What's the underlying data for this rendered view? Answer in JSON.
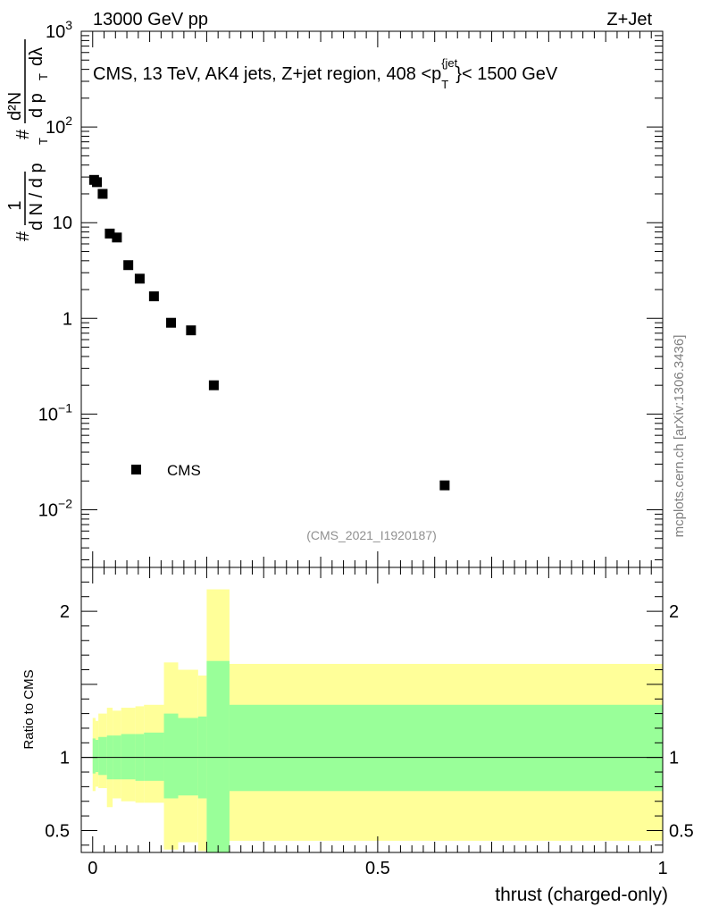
{
  "header": {
    "energy_label": "13000 GeV pp",
    "process_label": "Z+Jet"
  },
  "chart_data": [
    {
      "type": "scatter",
      "panel": "main",
      "title": "CMS, 13 TeV, AK4 jets, Z+jet region, 408 <p_T^{jet}< 1500 GeV",
      "title_parts": {
        "prefix": "CMS, 13 TeV, AK4 jets, Z+jet region, 408 <p",
        "sub": "T",
        "sup": "{jet",
        "suffix": "}< 1500 GeV"
      },
      "ylabel": "1/(dN/dp_T) dN^2/(dp_T dλ)",
      "ylabel_parts": {
        "hash": "#",
        "one": "1",
        "dN": "d N / d p",
        "T": "T",
        "d2N": "d²N",
        "dpT": "d p",
        "dlambda": "dλ"
      },
      "yscale": "log",
      "ylim": [
        0.0025,
        1000
      ],
      "xlim": [
        -0.02,
        1.0
      ],
      "yticks": [
        {
          "value": 1000,
          "base": "10",
          "exp": "3"
        },
        {
          "value": 100,
          "base": "10",
          "exp": "2"
        },
        {
          "value": 10,
          "base": "10",
          "exp": ""
        },
        {
          "value": 1,
          "base": "1",
          "exp": ""
        },
        {
          "value": 0.1,
          "base": "10",
          "exp": "−1"
        },
        {
          "value": 0.01,
          "base": "10",
          "exp": "−2"
        }
      ],
      "series": [
        {
          "name": "CMS",
          "marker": "square",
          "color": "#000000",
          "x": [
            0.0025,
            0.0075,
            0.0175,
            0.03,
            0.0425,
            0.0625,
            0.0825,
            0.1075,
            0.1375,
            0.1725,
            0.2125,
            0.6175
          ],
          "y": [
            28,
            26.5,
            20,
            7.7,
            7.0,
            3.6,
            2.6,
            1.7,
            0.9,
            0.75,
            0.2,
            0.018
          ]
        }
      ],
      "legend": {
        "label": "CMS",
        "placement": "bottom-left"
      },
      "analysis_id": "(CMS_2021_I1920187)"
    },
    {
      "type": "area",
      "panel": "ratio",
      "ylabel": "Ratio to CMS",
      "xlabel": "thrust (charged-only)",
      "ylim": [
        0.35,
        2.3
      ],
      "xlim": [
        -0.02,
        1.0
      ],
      "yticks": [
        0.5,
        1,
        2
      ],
      "ytick_labels": [
        "0.5",
        "1",
        "2"
      ],
      "xticks": [
        0,
        0.5,
        1
      ],
      "xtick_labels": [
        "0",
        "0.5",
        "1"
      ],
      "reference_line": 1,
      "bin_edges": [
        0,
        0.005,
        0.01,
        0.025,
        0.035,
        0.05,
        0.075,
        0.09,
        0.125,
        0.15,
        0.185,
        0.2,
        0.24,
        1.0
      ],
      "bands": [
        {
          "name": "total uncertainty",
          "color": "#ffff99",
          "lower": [
            0.77,
            0.8,
            0.79,
            0.66,
            0.72,
            0.7,
            0.69,
            0.69,
            0.37,
            0.42,
            0.36,
            0.36,
            0.43
          ],
          "upper": [
            1.27,
            1.25,
            1.3,
            1.34,
            1.32,
            1.34,
            1.35,
            1.36,
            1.65,
            1.6,
            1.56,
            2.15,
            1.64
          ]
        },
        {
          "name": "statistical uncertainty",
          "color": "#99ff99",
          "lower": [
            0.89,
            0.9,
            0.88,
            0.85,
            0.85,
            0.85,
            0.84,
            0.84,
            0.72,
            0.74,
            0.72,
            0.35,
            0.77
          ],
          "upper": [
            1.13,
            1.12,
            1.14,
            1.15,
            1.15,
            1.16,
            1.16,
            1.17,
            1.3,
            1.27,
            1.28,
            1.66,
            1.36
          ]
        }
      ]
    }
  ],
  "watermark": "mcplots.cern.ch [arXiv:1306.3436]"
}
